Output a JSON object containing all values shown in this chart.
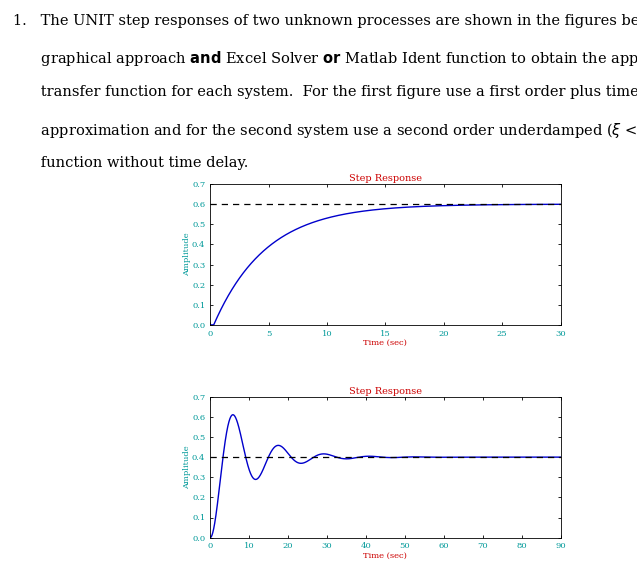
{
  "title1": "Step Response",
  "title2": "Step Response",
  "xlabel1": "Time (sec)",
  "xlabel2": "Time (sec)",
  "ylabel": "Amplitude",
  "plot1_xlim": [
    0,
    30
  ],
  "plot1_ylim": [
    0,
    0.7
  ],
  "plot1_yticks": [
    0,
    0.1,
    0.2,
    0.3,
    0.4,
    0.5,
    0.6,
    0.7
  ],
  "plot1_xticks": [
    0,
    5,
    10,
    15,
    20,
    25,
    30
  ],
  "plot1_ss": 0.6,
  "plot1_tau": 4.5,
  "plot1_delay": 0.3,
  "plot2_xlim": [
    0,
    90
  ],
  "plot2_ylim": [
    0,
    0.7
  ],
  "plot2_yticks": [
    0,
    0.1,
    0.2,
    0.3,
    0.4,
    0.5,
    0.6,
    0.7
  ],
  "plot2_xticks": [
    0,
    10,
    20,
    30,
    40,
    50,
    60,
    70,
    80,
    90
  ],
  "plot2_ss": 0.4,
  "plot2_wn": 0.55,
  "plot2_zeta": 0.2,
  "line_color": "#0000cc",
  "dashed_color": "#000000",
  "title_color": "#cc0000",
  "axis_color": "#009999",
  "bg_color": "#ffffff",
  "bold_words_line1": [
    "and"
  ],
  "bold_words_line2": [
    "or"
  ],
  "text_fontsize": 10.5,
  "plot_title_fontsize": 7,
  "axis_label_fontsize": 6,
  "tick_fontsize": 6
}
